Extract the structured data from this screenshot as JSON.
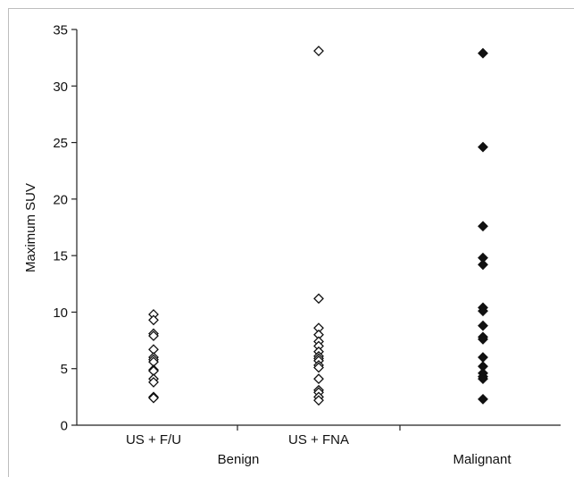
{
  "chart_data": {
    "type": "scatter",
    "title": "",
    "xlabel": "",
    "ylabel": "Maximum SUV",
    "ylim": [
      0,
      35
    ],
    "yticks": [
      0,
      5,
      10,
      15,
      20,
      25,
      30,
      35
    ],
    "grid": false,
    "legend": "none",
    "categories": [
      "US + F/U",
      "US + FNA",
      "Malignant"
    ],
    "group_label": "Benign",
    "series": [
      {
        "category": "US + F/U",
        "marker": "open-diamond",
        "values": [
          9.8,
          9.3,
          8.1,
          7.9,
          6.7,
          6.0,
          5.8,
          5.6,
          4.9,
          4.8,
          4.1,
          3.8,
          2.5,
          2.4
        ]
      },
      {
        "category": "US + FNA",
        "marker": "open-diamond",
        "values": [
          33.1,
          11.2,
          8.6,
          8.0,
          7.4,
          7.0,
          6.5,
          6.1,
          5.9,
          5.7,
          5.3,
          5.1,
          4.1,
          3.1,
          2.9,
          2.5,
          2.2
        ]
      },
      {
        "category": "Malignant",
        "marker": "filled-diamond",
        "values": [
          32.9,
          24.6,
          17.6,
          14.8,
          14.2,
          10.4,
          10.1,
          8.8,
          7.8,
          7.6,
          6.0,
          5.2,
          4.6,
          4.3,
          4.1,
          2.3
        ]
      }
    ],
    "colors": {
      "marker": "#111111",
      "axis": "#222222",
      "frame": "#bdbdbd"
    }
  }
}
